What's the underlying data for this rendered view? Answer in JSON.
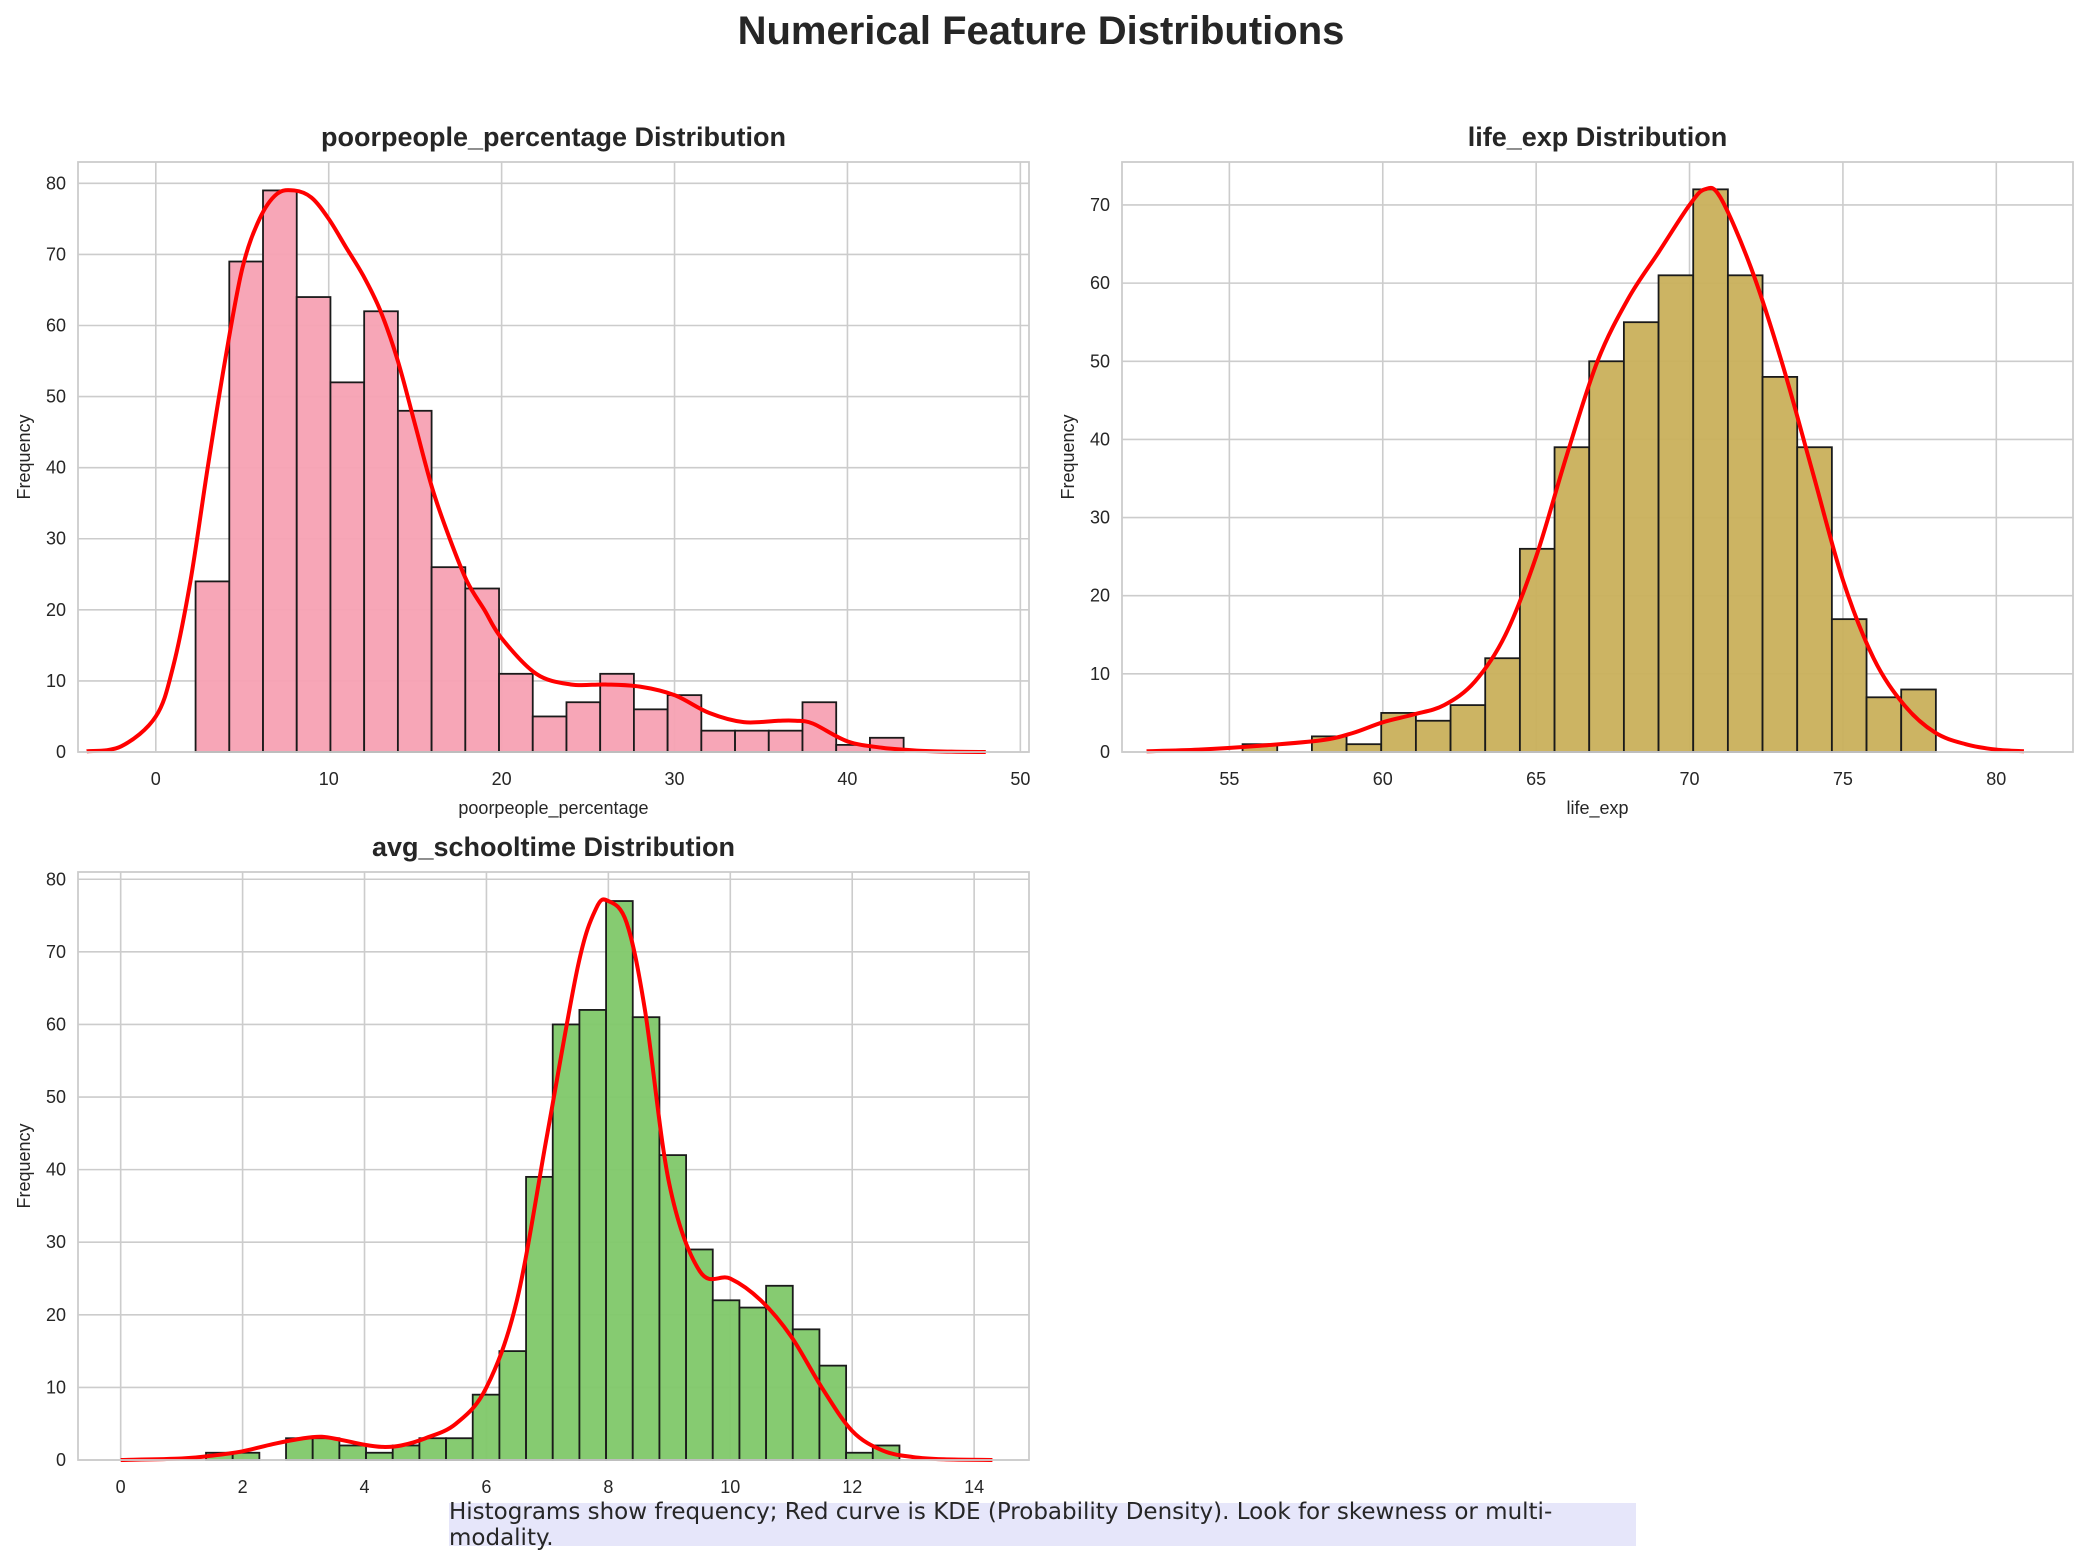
{
  "figure": {
    "title": "Numerical Feature Distributions",
    "caption": "Histograms show frequency; Red curve is KDE (Probability Density). Look for skewness or multi-modality.",
    "kde_color": "#ff0000",
    "grid_color": "#cccccc"
  },
  "chart_data": [
    {
      "type": "bar",
      "subtype": "histogram+kde",
      "title": "poorpeople_percentage Distribution",
      "xlabel": "poorpeople_percentage",
      "ylabel": "Frequency",
      "xlim": [
        -4.5,
        50.5
      ],
      "ylim": [
        0,
        83
      ],
      "xticks": [
        0,
        10,
        20,
        30,
        40,
        50
      ],
      "yticks": [
        0,
        10,
        20,
        30,
        40,
        50,
        60,
        70,
        80
      ],
      "color": "#f7a1b3",
      "bins": {
        "start": 2.3,
        "width": 1.95,
        "values": [
          24,
          69,
          79,
          64,
          52,
          62,
          48,
          26,
          23,
          11,
          5,
          7,
          11,
          6,
          8,
          3,
          3,
          3,
          7,
          1,
          2
        ]
      },
      "kde": {
        "x": [
          -4,
          -2,
          0,
          1,
          2,
          3,
          4,
          5,
          6,
          7,
          8,
          9,
          10,
          11,
          12,
          13,
          14,
          15,
          16,
          17,
          18,
          19,
          20,
          22,
          24,
          26,
          28,
          30,
          32,
          34,
          36,
          37,
          38,
          40,
          42,
          44,
          46,
          48
        ],
        "y": [
          0.1,
          0.8,
          5,
          12,
          24,
          40,
          55,
          68,
          75,
          78.5,
          79,
          78,
          75,
          71,
          67,
          62,
          55,
          46,
          37,
          30,
          24,
          20,
          16,
          11,
          9.5,
          9.5,
          9.2,
          8,
          5.5,
          4.2,
          4.4,
          4.4,
          4,
          1.5,
          0.6,
          0.2,
          0.05,
          0
        ]
      }
    },
    {
      "type": "bar",
      "subtype": "histogram+kde",
      "title": "life_exp Distribution",
      "xlabel": "life_exp",
      "ylabel": "Frequency",
      "xlim": [
        51.5,
        82.5
      ],
      "ylim": [
        0,
        75.5
      ],
      "xticks": [
        55,
        60,
        65,
        70,
        75,
        80
      ],
      "yticks": [
        0,
        10,
        20,
        30,
        40,
        50,
        60,
        70
      ],
      "color": "#c9b05b",
      "bins": {
        "start": 54.3,
        "width": 1.13,
        "values": [
          0,
          1,
          0,
          2,
          1,
          5,
          4,
          6,
          12,
          26,
          39,
          50,
          55,
          61,
          72,
          61,
          48,
          39,
          17,
          7,
          8
        ]
      },
      "kde": {
        "x": [
          52.3,
          54,
          56,
          58,
          59,
          60,
          61,
          62,
          63,
          64,
          65,
          66,
          67,
          68,
          69,
          70,
          70.5,
          71,
          72,
          73,
          74,
          75,
          76,
          77,
          78,
          79,
          80,
          80.9
        ],
        "y": [
          0.1,
          0.3,
          0.8,
          1.5,
          2.4,
          3.8,
          4.8,
          6,
          9,
          15,
          25,
          38,
          50,
          58,
          64,
          70,
          72,
          71,
          62,
          50,
          36,
          22,
          12,
          6,
          2.5,
          1,
          0.3,
          0.1
        ]
      }
    },
    {
      "type": "bar",
      "subtype": "histogram+kde",
      "title": "avg_schooltime Distribution",
      "xlabel": "avg_schooltime",
      "ylabel": "Frequency",
      "xlim": [
        -0.7,
        14.9
      ],
      "ylim": [
        0,
        81
      ],
      "xticks": [
        0,
        2,
        4,
        6,
        8,
        10,
        12,
        14
      ],
      "yticks": [
        0,
        10,
        20,
        30,
        40,
        50,
        60,
        70,
        80
      ],
      "color": "#80c869",
      "bins": {
        "start": 1.4,
        "width": 0.4375,
        "values": [
          1,
          1,
          0,
          3,
          3,
          2,
          1,
          2,
          3,
          3,
          9,
          15,
          39,
          60,
          62,
          77,
          61,
          42,
          29,
          22,
          21,
          24,
          18,
          13,
          1,
          2
        ]
      },
      "kde": {
        "x": [
          0,
          1,
          1.5,
          2,
          2.5,
          3,
          3.3,
          3.6,
          4,
          4.3,
          4.6,
          5,
          5.5,
          6,
          6.5,
          7,
          7.5,
          7.8,
          8,
          8.3,
          8.6,
          9,
          9.5,
          10,
          10.5,
          11,
          11.5,
          12,
          12.5,
          13,
          13.5,
          14.3
        ],
        "y": [
          0,
          0.2,
          0.6,
          1.2,
          2.2,
          3,
          3.2,
          2.8,
          2.1,
          1.8,
          2,
          3,
          5,
          10,
          22,
          45,
          68,
          76,
          77,
          74,
          62,
          38,
          26,
          25,
          22,
          17,
          10,
          4,
          1.3,
          0.4,
          0.1,
          0
        ]
      }
    }
  ]
}
